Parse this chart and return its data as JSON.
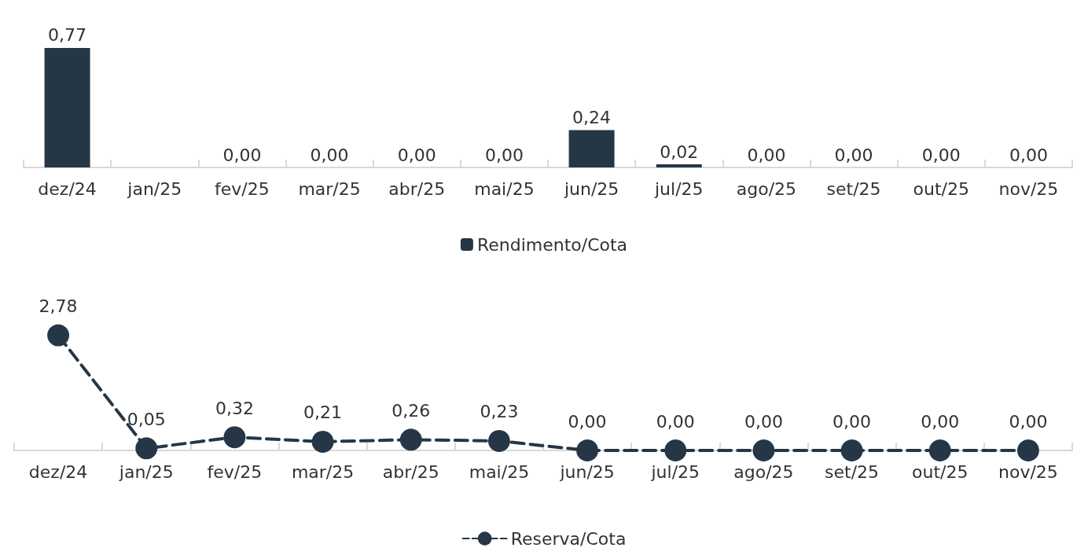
{
  "chart_data": [
    {
      "type": "bar",
      "categories": [
        "dez/24",
        "jan/25",
        "fev/25",
        "mar/25",
        "abr/25",
        "mai/25",
        "jun/25",
        "jul/25",
        "ago/25",
        "set/25",
        "out/25",
        "nov/25"
      ],
      "series": [
        {
          "name": "Rendimento/Cota",
          "color": "#253746",
          "values": [
            0.77,
            null,
            0,
            0,
            0,
            0,
            0.24,
            0.02,
            0,
            0,
            0,
            0
          ],
          "value_labels": [
            "0,77",
            null,
            "0,00",
            "0,00",
            "0,00",
            "0,00",
            "0,24",
            "0,02",
            "0,00",
            "0,00",
            "0,00",
            "0,00"
          ]
        }
      ],
      "legend": "bottom"
    },
    {
      "type": "line",
      "categories": [
        "dez/24",
        "jan/25",
        "fev/25",
        "mar/25",
        "abr/25",
        "mai/25",
        "jun/25",
        "jul/25",
        "ago/25",
        "set/25",
        "out/25",
        "nov/25"
      ],
      "series": [
        {
          "name": "Reserva/Cota",
          "color": "#253746",
          "values": [
            2.78,
            0.05,
            0.32,
            0.21,
            0.26,
            0.23,
            0,
            0,
            0,
            0,
            0,
            0
          ],
          "value_labels": [
            "2,78",
            "0,05",
            "0,32",
            "0,21",
            "0,26",
            "0,23",
            "0,00",
            "0,00",
            "0,00",
            "0,00",
            "0,00",
            "0,00"
          ]
        }
      ],
      "legend": "bottom",
      "marker": "circle",
      "line_style": "dashed"
    }
  ]
}
